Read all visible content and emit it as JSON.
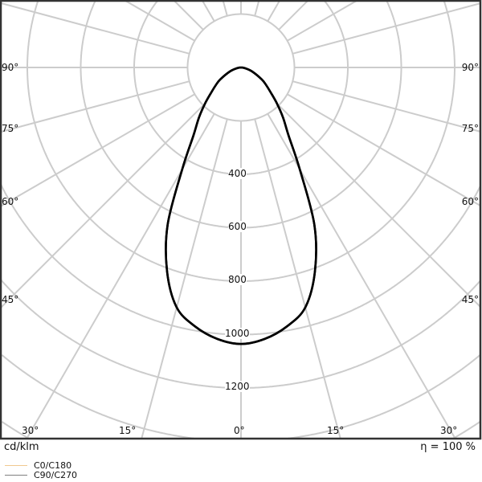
{
  "chart_data": {
    "type": "polar",
    "unit_label": "cd/klm",
    "efficiency_label": "η = 100 %",
    "radial_ticks": [
      400,
      600,
      800,
      1000,
      1200
    ],
    "radial_grid_step": 200,
    "angle_labels_side": [
      "90°",
      "75°",
      "60°",
      "45°"
    ],
    "angle_labels_bottom": [
      "30°",
      "15°",
      "0°",
      "15°",
      "30°"
    ],
    "angle_grid_step_deg": 15,
    "grid": true,
    "colors": {
      "grid": "#cccccc",
      "curve": "#000000",
      "frame": "#333333"
    },
    "legend": [
      {
        "name": "C0/C180",
        "color": "#f0c890"
      },
      {
        "name": "C90/C270",
        "color": "#808080"
      }
    ],
    "series": [
      {
        "name": "C0/C180",
        "gamma_deg": [
          0,
          5,
          10,
          15,
          20,
          25,
          30,
          35,
          40,
          45,
          50,
          55,
          60,
          70,
          80,
          90
        ],
        "values": [
          1035,
          1020,
          985,
          930,
          810,
          650,
          440,
          310,
          245,
          190,
          145,
          115,
          90,
          45,
          15,
          0
        ]
      },
      {
        "name": "C90/C270",
        "gamma_deg": [
          0,
          5,
          10,
          15,
          20,
          25,
          30,
          35,
          40,
          45,
          50,
          55,
          60,
          70,
          80,
          90
        ],
        "values": [
          1035,
          1020,
          985,
          930,
          810,
          650,
          440,
          310,
          245,
          190,
          145,
          115,
          90,
          45,
          15,
          0
        ]
      }
    ]
  }
}
